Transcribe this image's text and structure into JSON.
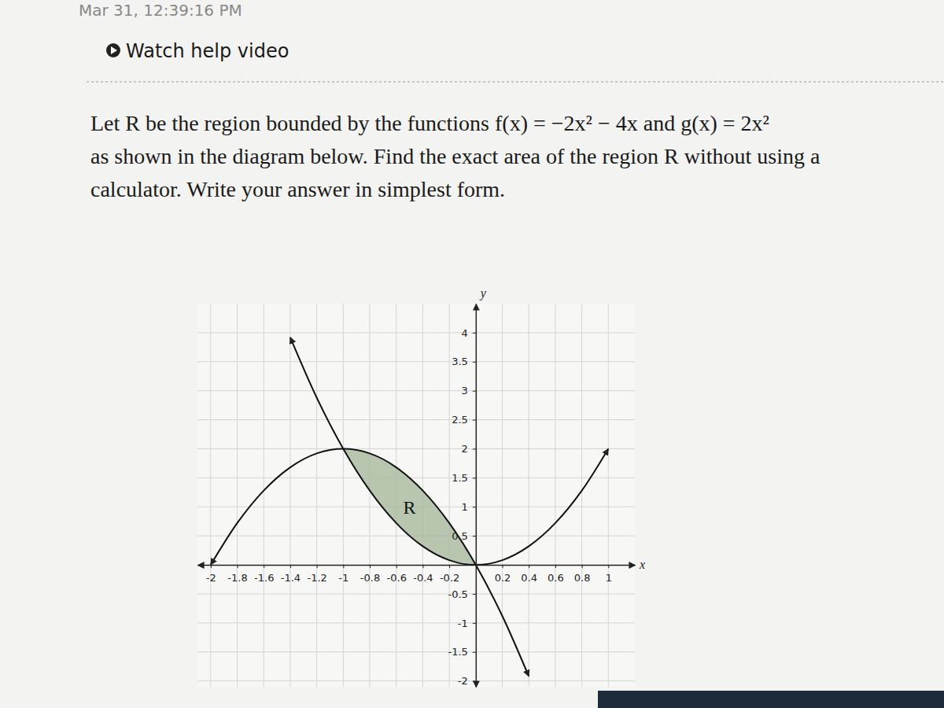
{
  "header": {
    "timestamp": "Mar 31, 12:39:16 PM",
    "help_link": "Watch help video"
  },
  "problem": {
    "lines": [
      "Let R be the region bounded by the functions f(x) = −2x² − 4x and g(x) = 2x²",
      "as shown in the diagram below. Find the exact area of the region R without using a",
      "calculator. Write your answer in simplest form."
    ]
  },
  "chart_data": {
    "type": "line",
    "x_label": "x",
    "y_label": "y",
    "xlim": [
      -2.1,
      1.2
    ],
    "ylim": [
      -2.1,
      4.5
    ],
    "xticks": [
      -2,
      -1.8,
      -1.6,
      -1.4,
      -1.2,
      -1,
      -0.8,
      -0.6,
      -0.4,
      -0.2,
      0.2,
      0.4,
      0.6,
      0.8,
      1
    ],
    "yticks": [
      -2,
      -1.5,
      -1,
      -0.5,
      0.5,
      1,
      1.5,
      2,
      2.5,
      3,
      3.5,
      4
    ],
    "grid": true,
    "series": [
      {
        "color": "#111111",
        "x": [
          -2,
          -1.8,
          -1.6,
          -1.4,
          -1.2,
          -1,
          -0.8,
          -0.6,
          -0.4,
          -0.2,
          0,
          0.2,
          0.4
        ],
        "values": [
          0,
          0.72,
          1.28,
          1.68,
          1.92,
          2,
          1.92,
          1.68,
          1.28,
          0.72,
          0,
          -0.88,
          -1.92
        ]
      },
      {
        "color": "#111111",
        "x": [
          -1.4,
          -1.2,
          -1,
          -0.8,
          -0.6,
          -0.4,
          -0.2,
          0,
          0.2,
          0.4,
          0.6,
          0.8,
          1
        ],
        "values": [
          3.92,
          2.88,
          2,
          1.28,
          0.72,
          0.32,
          0.08,
          0,
          0.08,
          0.32,
          0.72,
          1.28,
          2
        ]
      }
    ],
    "shaded": {
      "label": "R",
      "color": "#a8b89e",
      "x": [
        -1,
        -0.8,
        -0.6,
        -0.4,
        -0.2,
        0
      ],
      "upper": [
        2,
        1.92,
        1.68,
        1.28,
        0.72,
        0
      ],
      "lower": [
        2,
        1.28,
        0.72,
        0.32,
        0.08,
        0
      ]
    }
  }
}
